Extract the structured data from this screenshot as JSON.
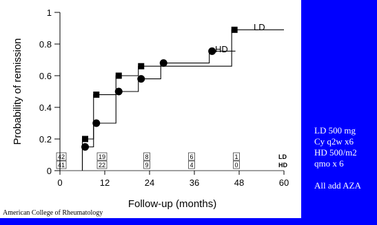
{
  "chart_data": {
    "type": "line",
    "step": true,
    "xlabel": "Follow-up (months)",
    "ylabel": "Probability of remission",
    "xlim": [
      0,
      60
    ],
    "ylim": [
      0,
      1
    ],
    "xticks": [
      0,
      12,
      24,
      36,
      48,
      60
    ],
    "yticks": [
      0,
      0.2,
      0.4,
      0.6,
      0.8,
      1
    ],
    "grid": false,
    "series": [
      {
        "name": "LD",
        "marker": "square",
        "points": [
          {
            "x": 6,
            "y": 0.2
          },
          {
            "x": 9,
            "y": 0.48
          },
          {
            "x": 15,
            "y": 0.6
          },
          {
            "x": 21,
            "y": 0.66
          },
          {
            "x": 46,
            "y": 0.89
          }
        ],
        "end_x": 60
      },
      {
        "name": "HD",
        "marker": "circle",
        "points": [
          {
            "x": 6,
            "y": 0.15
          },
          {
            "x": 9,
            "y": 0.3
          },
          {
            "x": 15,
            "y": 0.5
          },
          {
            "x": 21,
            "y": 0.58
          },
          {
            "x": 27,
            "y": 0.68
          },
          {
            "x": 40,
            "y": 0.755
          }
        ],
        "end_x": 47
      }
    ],
    "at_risk": {
      "times": [
        0,
        12,
        24,
        36,
        48
      ],
      "rows": [
        {
          "label": "LD",
          "counts": [
            "42",
            "19",
            "8",
            "6",
            "1"
          ]
        },
        {
          "label": "HD",
          "counts": [
            "41",
            "22",
            "9",
            "4",
            "0"
          ]
        }
      ]
    }
  },
  "credit": "American College of Rheumatology",
  "side_notes": [
    "LD 500 mg",
    "Cy q2w x6",
    "HD 500/m2",
    "qmo x 6",
    "",
    "All add AZA"
  ]
}
